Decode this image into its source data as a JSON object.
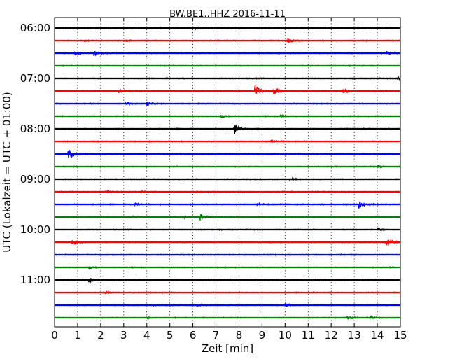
{
  "chart_data": {
    "type": "line",
    "title": "BW.BE1..HHZ 2016-11-11",
    "xlabel": "Zeit  [min]",
    "ylabel": "UTC (Lokalzeit = UTC + 01:00)",
    "xlim": [
      0,
      15
    ],
    "x_ticks": [
      "0",
      "1",
      "2",
      "3",
      "4",
      "5",
      "6",
      "7",
      "8",
      "9",
      "10",
      "11",
      "12",
      "13",
      "14",
      "15"
    ],
    "y_tick_labels": [
      "06:00",
      "07:00",
      "08:00",
      "09:00",
      "10:00",
      "11:00"
    ],
    "y_tick_row_index": [
      0,
      4,
      8,
      12,
      16,
      20
    ],
    "row_minutes": 15,
    "grid": "vertical dotted at each minute",
    "series_colors": [
      "#000000",
      "#ff0000",
      "#0000ff",
      "#008000"
    ],
    "series": [
      {
        "start": "06:00",
        "color": "#000000",
        "events": [
          {
            "t": 6.0,
            "amp": 0.35
          }
        ]
      },
      {
        "start": "06:15",
        "color": "#ff0000",
        "events": [
          {
            "t": 1.3,
            "amp": 0.25
          },
          {
            "t": 3.1,
            "amp": 0.2
          },
          {
            "t": 10.1,
            "amp": 0.7
          }
        ]
      },
      {
        "start": "06:30",
        "color": "#0000ff",
        "events": [
          {
            "t": 0.9,
            "amp": 0.45
          },
          {
            "t": 1.7,
            "amp": 0.7
          },
          {
            "t": 14.4,
            "amp": 0.35
          }
        ]
      },
      {
        "start": "06:45",
        "color": "#008000",
        "events": [
          {
            "t": 1.7,
            "amp": 0.2
          }
        ]
      },
      {
        "start": "07:00",
        "color": "#000000",
        "events": [
          {
            "t": 14.9,
            "amp": 0.85
          }
        ]
      },
      {
        "start": "07:15",
        "color": "#ff0000",
        "events": [
          {
            "t": 2.8,
            "amp": 0.55
          },
          {
            "t": 8.7,
            "amp": 1.4
          },
          {
            "t": 9.5,
            "amp": 1.0
          },
          {
            "t": 12.5,
            "amp": 0.65
          }
        ]
      },
      {
        "start": "07:30",
        "color": "#0000ff",
        "events": [
          {
            "t": 3.1,
            "amp": 0.45
          },
          {
            "t": 4.0,
            "amp": 0.5
          }
        ]
      },
      {
        "start": "07:45",
        "color": "#008000",
        "events": [
          {
            "t": 7.2,
            "amp": 0.35
          },
          {
            "t": 9.8,
            "amp": 0.3
          }
        ]
      },
      {
        "start": "08:00",
        "color": "#000000",
        "events": [
          {
            "t": 7.8,
            "amp": 1.5
          }
        ]
      },
      {
        "start": "08:15",
        "color": "#ff0000",
        "events": [
          {
            "t": 9.4,
            "amp": 0.4
          }
        ]
      },
      {
        "start": "08:30",
        "color": "#0000ff",
        "events": [
          {
            "t": 0.6,
            "amp": 1.3
          }
        ]
      },
      {
        "start": "08:45",
        "color": "#008000",
        "events": [
          {
            "t": 14.0,
            "amp": 0.3
          }
        ]
      },
      {
        "start": "09:00",
        "color": "#000000",
        "events": [
          {
            "t": 10.2,
            "amp": 0.3
          }
        ]
      },
      {
        "start": "09:15",
        "color": "#ff0000",
        "events": [
          {
            "t": 2.2,
            "amp": 0.3
          },
          {
            "t": 3.8,
            "amp": 0.25
          }
        ]
      },
      {
        "start": "09:30",
        "color": "#0000ff",
        "events": [
          {
            "t": 3.5,
            "amp": 0.4
          },
          {
            "t": 8.8,
            "amp": 0.35
          },
          {
            "t": 13.2,
            "amp": 1.0
          }
        ]
      },
      {
        "start": "09:45",
        "color": "#008000",
        "events": [
          {
            "t": 3.4,
            "amp": 0.3
          },
          {
            "t": 5.6,
            "amp": 0.3
          },
          {
            "t": 6.3,
            "amp": 0.9
          }
        ]
      },
      {
        "start": "10:00",
        "color": "#000000",
        "events": [
          {
            "t": 14.0,
            "amp": 0.35
          }
        ]
      },
      {
        "start": "10:15",
        "color": "#ff0000",
        "events": [
          {
            "t": 0.75,
            "amp": 1.1
          },
          {
            "t": 14.4,
            "amp": 1.1
          }
        ]
      },
      {
        "start": "10:30",
        "color": "#0000ff",
        "events": []
      },
      {
        "start": "10:45",
        "color": "#008000",
        "events": [
          {
            "t": 1.5,
            "amp": 0.3
          }
        ]
      },
      {
        "start": "11:00",
        "color": "#000000",
        "events": [
          {
            "t": 1.5,
            "amp": 0.75
          }
        ]
      },
      {
        "start": "11:15",
        "color": "#ff0000",
        "events": [
          {
            "t": 2.2,
            "amp": 0.25
          }
        ]
      },
      {
        "start": "11:30",
        "color": "#0000ff",
        "events": [
          {
            "t": 6.2,
            "amp": 0.3
          },
          {
            "t": 10.0,
            "amp": 0.4
          }
        ]
      },
      {
        "start": "11:45",
        "color": "#008000",
        "events": [
          {
            "t": 4.0,
            "amp": 0.2
          },
          {
            "t": 12.7,
            "amp": 0.3
          },
          {
            "t": 13.7,
            "amp": 0.35
          }
        ]
      }
    ]
  }
}
